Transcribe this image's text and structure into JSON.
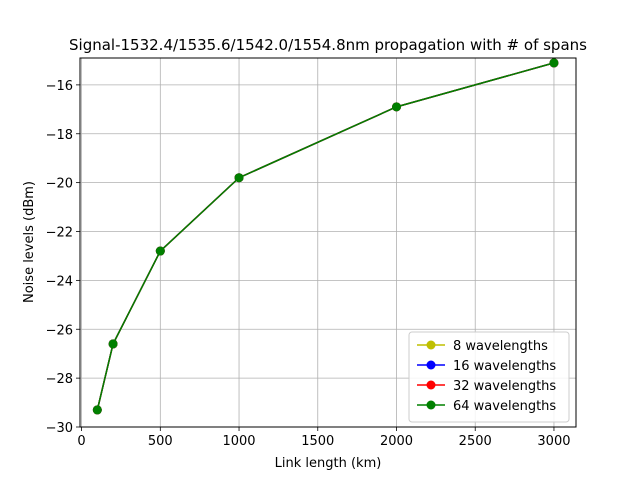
{
  "chart_data": {
    "type": "line",
    "title": "Signal-1532.4/1535.6/1542.0/1554.8nm propagation with # of spans",
    "xlabel": "Link length (km)",
    "ylabel": "Noise levels (dBm)",
    "xlim": [
      -10,
      3140
    ],
    "ylim": [
      -30,
      -14.9
    ],
    "xticks": [
      0,
      500,
      1000,
      1500,
      2000,
      2500,
      3000
    ],
    "yticks": [
      -30,
      -28,
      -26,
      -24,
      -22,
      -20,
      -18,
      -16
    ],
    "xtick_labels": [
      "0",
      "500",
      "1000",
      "1500",
      "2000",
      "2500",
      "3000"
    ],
    "ytick_labels": [
      "−30",
      "−28",
      "−26",
      "−24",
      "−22",
      "−20",
      "−18",
      "−16"
    ],
    "x": [
      100,
      200,
      500,
      1000,
      2000,
      3000
    ],
    "grid": true,
    "legend_position": "lower right",
    "series": [
      {
        "name": "8 wavelengths",
        "color": "#bfbf00",
        "marker": "circle",
        "values": [
          -29.3,
          -26.6,
          -22.8,
          -19.8,
          -16.9,
          -15.1
        ]
      },
      {
        "name": "16 wavelengths",
        "color": "#0000ff",
        "marker": "circle",
        "values": [
          -29.3,
          -26.6,
          -22.8,
          -19.8,
          -16.9,
          -15.1
        ]
      },
      {
        "name": "32 wavelengths",
        "color": "#ff0000",
        "marker": "circle",
        "values": [
          -29.3,
          -26.6,
          -22.8,
          -19.8,
          -16.9,
          -15.1
        ]
      },
      {
        "name": "64 wavelengths",
        "color": "#008000",
        "marker": "circle",
        "values": [
          -29.3,
          -26.6,
          -22.8,
          -19.8,
          -16.9,
          -15.1
        ]
      }
    ]
  }
}
